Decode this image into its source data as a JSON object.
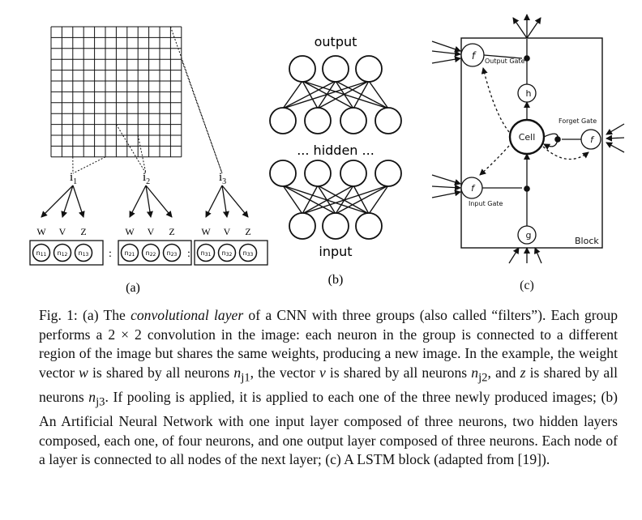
{
  "panel_a": {
    "groups": [
      {
        "label_base": "i",
        "label_sub": "1",
        "weights": [
          "w",
          "v",
          "z"
        ],
        "neurons": [
          [
            "n",
            "11"
          ],
          [
            "n",
            "12"
          ],
          [
            "n",
            "13"
          ]
        ]
      },
      {
        "label_base": "i",
        "label_sub": "2",
        "weights": [
          "w",
          "v",
          "z"
        ],
        "neurons": [
          [
            "n",
            "21"
          ],
          [
            "n",
            "22"
          ],
          [
            "n",
            "23"
          ]
        ]
      },
      {
        "label_base": "i",
        "label_sub": "3",
        "weights": [
          "w",
          "v",
          "z"
        ],
        "neurons": [
          [
            "n",
            "31"
          ],
          [
            "n",
            "32"
          ],
          [
            "n",
            "33"
          ]
        ]
      }
    ],
    "separator": ":",
    "caption_label": "(a)"
  },
  "panel_b": {
    "output_label": "output",
    "hidden_label": "... hidden ...",
    "input_label": "input",
    "caption_label": "(b)"
  },
  "panel_c": {
    "output_gate": "Output Gate",
    "forget_gate": "Forget Gate",
    "input_gate": "Input Gate",
    "cell": "Cell",
    "block": "Block",
    "f_glyph": "f",
    "h_glyph": "h",
    "g_glyph": "g",
    "caption_label": "(c)"
  },
  "caption": {
    "fig_label": "Fig. 1:",
    "seg1": " (a) The ",
    "seg1_italic": "convolutional layer",
    "seg2": " of a CNN with three groups (also called “filters”). Each group performs a 2 × 2 convolution in the image: each neuron in the group is connected to a different region of the image but shares the same weights, producing a new image. In the example, the weight vector ",
    "w": "w",
    "seg3": " is shared by all neurons ",
    "nj1": "n",
    "nj1_sub": "j1",
    "seg4": ", the vector ",
    "v": "v",
    "seg5": " is shared by all neurons ",
    "nj2": "n",
    "nj2_sub": "j2",
    "seg6": ", and ",
    "z": "z",
    "seg7": " is shared by all neurons ",
    "nj3": "n",
    "nj3_sub": "j3",
    "seg8": ". If pooling is applied, it is applied to each one of the three newly produced images; (b) An Artificial Neural Network with one input layer composed of three neurons, two hidden layers composed, each one, of four neurons, and one output layer composed of three neurons. Each node of a layer is connected to all nodes of the next layer; (c) A LSTM block (adapted from [19])."
  }
}
